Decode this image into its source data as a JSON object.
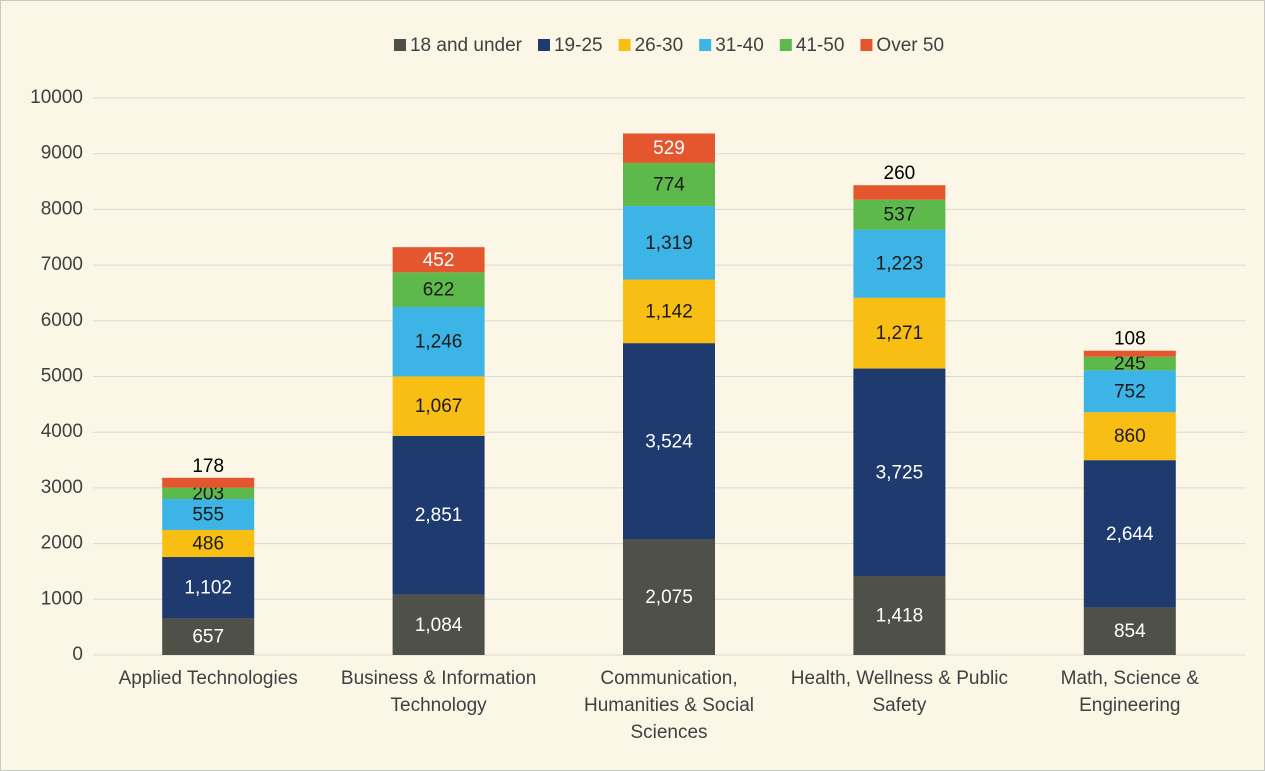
{
  "chart_data": {
    "type": "stacked_bar",
    "categories": [
      "Applied Technologies",
      "Business & Information Technology",
      "Communication, Humanities & Social Sciences",
      "Health, Wellness & Public Safety",
      "Math, Science & Engineering"
    ],
    "series": [
      {
        "name": "18 and under",
        "color": "#4f5048",
        "values": [
          657,
          1084,
          2075,
          1418,
          854
        ],
        "value_labels": [
          "657",
          "1,084",
          "2,075",
          "1,418",
          "854"
        ]
      },
      {
        "name": "19-25",
        "color": "#1f3a6e",
        "values": [
          1102,
          2851,
          3524,
          3725,
          2644
        ],
        "value_labels": [
          "1,102",
          "2,851",
          "3,524",
          "3,725",
          "2,644"
        ]
      },
      {
        "name": "26-30",
        "color": "#f9be14",
        "values": [
          486,
          1067,
          1142,
          1271,
          860
        ],
        "value_labels": [
          "486",
          "1,067",
          "1,142",
          "1,271",
          "860"
        ]
      },
      {
        "name": "31-40",
        "color": "#3cb4e6",
        "values": [
          555,
          1246,
          1319,
          1223,
          752
        ],
        "value_labels": [
          "555",
          "1,246",
          "1,319",
          "1,223",
          "752"
        ]
      },
      {
        "name": "41-50",
        "color": "#5db94b",
        "values": [
          203,
          622,
          774,
          537,
          245
        ],
        "value_labels": [
          "203",
          "622",
          "774",
          "537",
          "245"
        ]
      },
      {
        "name": "Over 50",
        "color": "#e4572e",
        "values": [
          178,
          452,
          529,
          260,
          108
        ],
        "value_labels": [
          "178",
          "452",
          "529",
          "260",
          "108"
        ]
      }
    ],
    "ylim": [
      0,
      10000
    ],
    "yticks": [
      0,
      1000,
      2000,
      3000,
      4000,
      5000,
      6000,
      7000,
      8000,
      9000,
      10000
    ],
    "grid": true,
    "legend": "top"
  }
}
